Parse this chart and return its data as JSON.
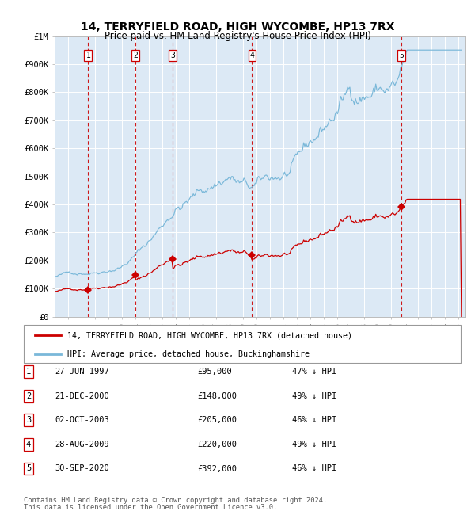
{
  "title": "14, TERRYFIELD ROAD, HIGH WYCOMBE, HP13 7RX",
  "subtitle": "Price paid vs. HM Land Registry's House Price Index (HPI)",
  "property_label": "14, TERRYFIELD ROAD, HIGH WYCOMBE, HP13 7RX (detached house)",
  "hpi_label": "HPI: Average price, detached house, Buckinghamshire",
  "footer1": "Contains HM Land Registry data © Crown copyright and database right 2024.",
  "footer2": "This data is licensed under the Open Government Licence v3.0.",
  "transactions": [
    {
      "num": 1,
      "date": "27-JUN-1997",
      "year": 1997.49,
      "price": 95000,
      "pct": "47% ↓ HPI"
    },
    {
      "num": 2,
      "date": "21-DEC-2000",
      "year": 2001.0,
      "price": 148000,
      "pct": "49% ↓ HPI"
    },
    {
      "num": 3,
      "date": "02-OCT-2003",
      "year": 2003.75,
      "price": 205000,
      "pct": "46% ↓ HPI"
    },
    {
      "num": 4,
      "date": "28-AUG-2009",
      "year": 2009.66,
      "price": 220000,
      "pct": "49% ↓ HPI"
    },
    {
      "num": 5,
      "date": "30-SEP-2020",
      "year": 2020.75,
      "price": 392000,
      "pct": "46% ↓ HPI"
    }
  ],
  "xlim": [
    1995.0,
    2025.5
  ],
  "ylim": [
    0,
    1000000
  ],
  "yticks": [
    0,
    100000,
    200000,
    300000,
    400000,
    500000,
    600000,
    700000,
    800000,
    900000,
    1000000
  ],
  "ytick_labels": [
    "£0",
    "£100K",
    "£200K",
    "£300K",
    "£400K",
    "£500K",
    "£600K",
    "£700K",
    "£800K",
    "£900K",
    "£1M"
  ],
  "bg_color": "#dce9f5",
  "hpi_color": "#7ab8d9",
  "price_color": "#cc0000",
  "dashed_color": "#cc0000",
  "title_fontsize": 10,
  "subtitle_fontsize": 8.5,
  "axis_fontsize": 7.5
}
